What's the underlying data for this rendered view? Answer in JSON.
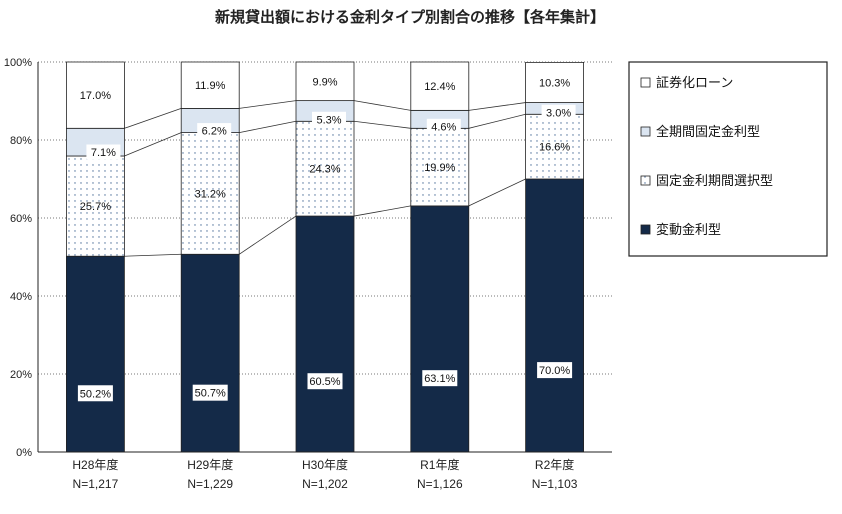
{
  "chart_data": {
    "type": "bar",
    "stacked": true,
    "title": "新規貸出額における金利タイプ別割合の推移【各年集計】",
    "categories": [
      "H28年度",
      "H29年度",
      "H30年度",
      "R1年度",
      "R2年度"
    ],
    "sample_sizes": [
      "N=1,217",
      "N=1,229",
      "N=1,202",
      "N=1,126",
      "N=1,103"
    ],
    "ylim": [
      0,
      100
    ],
    "yticks": [
      "0%",
      "20%",
      "40%",
      "60%",
      "80%",
      "100%"
    ],
    "grid": true,
    "legend_position": "right",
    "series": [
      {
        "name": "変動金利型",
        "values": [
          50.2,
          50.7,
          60.5,
          63.1,
          70.0
        ],
        "labels": [
          "50.2%",
          "50.7%",
          "60.5%",
          "63.1%",
          "70.0%"
        ],
        "fill": "#142a48"
      },
      {
        "name": "固定金利期間選択型",
        "values": [
          25.7,
          31.2,
          24.3,
          19.9,
          16.6
        ],
        "labels": [
          "25.7%",
          "31.2%",
          "24.3%",
          "19.9%",
          "16.6%"
        ],
        "fill": "dotted"
      },
      {
        "name": "全期間固定金利型",
        "values": [
          7.1,
          6.2,
          5.3,
          4.6,
          3.0
        ],
        "labels": [
          "7.1%",
          "6.2%",
          "5.3%",
          "4.6%",
          "3.0%"
        ],
        "fill": "#dbe5f1"
      },
      {
        "name": "証券化ローン",
        "values": [
          17.0,
          11.9,
          9.9,
          12.4,
          10.3
        ],
        "labels": [
          "17.0%",
          "11.9%",
          "9.9%",
          "12.4%",
          "10.3%"
        ],
        "fill": "#ffffff"
      }
    ],
    "legend_order": [
      "証券化ローン",
      "全期間固定金利型",
      "固定金利期間選択型",
      "変動金利型"
    ]
  }
}
